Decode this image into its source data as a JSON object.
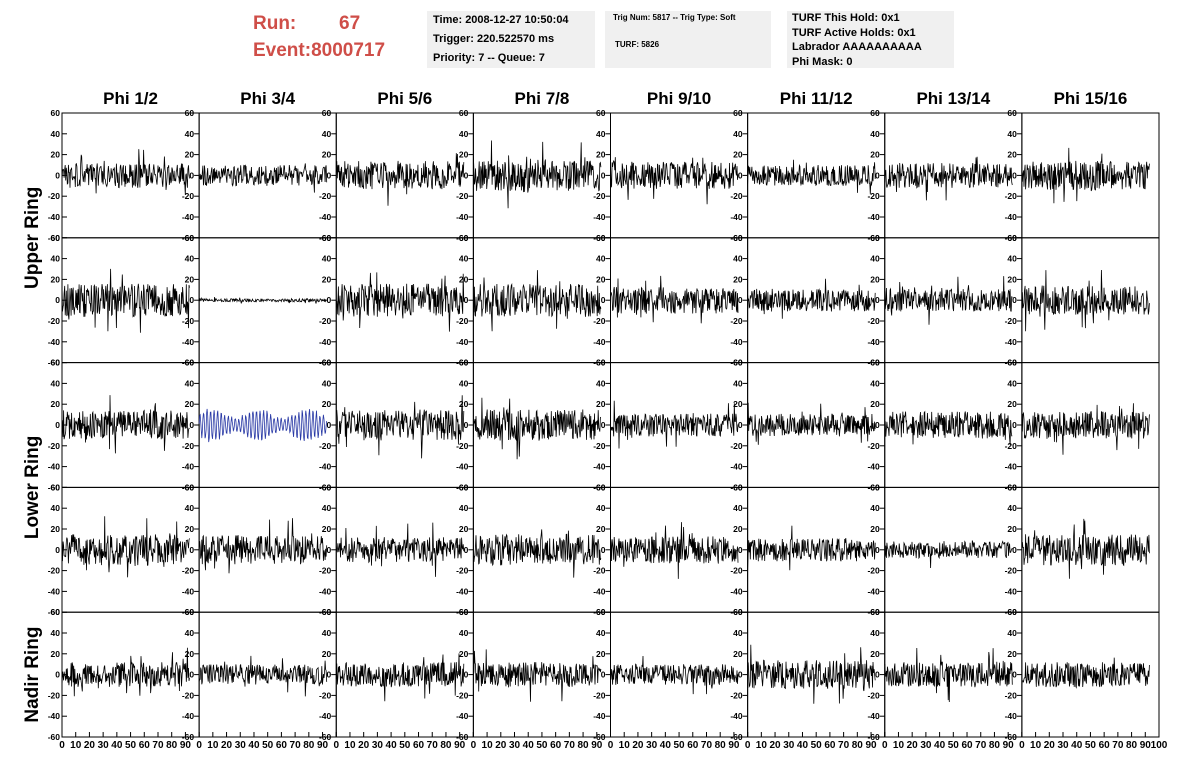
{
  "header": {
    "run_label": "Run:",
    "run_value": "67",
    "event_label": "Event:",
    "event_value": "8000717",
    "accent_color": "#cf4e48"
  },
  "info_time": {
    "line1": "Time: 2008-12-27 10:50:04",
    "line2": "Trigger: 220.522570 ms",
    "line3": "Priority: 7 -- Queue: 7"
  },
  "info_trig": {
    "line1": "Trig Num: 5817 -- Trig Type: Soft",
    "line2": "TURF: 5826"
  },
  "info_turf": {
    "line1": "TURF This Hold: 0x1",
    "line2": "TURF Active Holds: 0x1",
    "line3": "Labrador AAAAAAAAAA",
    "line4": "Phi Mask: 0"
  },
  "chart_data": {
    "type": "line",
    "columns": [
      "Phi 1/2",
      "Phi 3/4",
      "Phi 5/6",
      "Phi 7/8",
      "Phi 9/10",
      "Phi 11/12",
      "Phi 13/14",
      "Phi 15/16"
    ],
    "ring_labels": [
      {
        "label": "Upper Ring",
        "rows": [
          0,
          1
        ]
      },
      {
        "label": "Lower Ring",
        "rows": [
          2,
          3
        ]
      },
      {
        "label": "Nadir Ring",
        "rows": [
          4
        ]
      }
    ],
    "ylim": [
      -60,
      60
    ],
    "yticks": [
      "60",
      "40",
      "20",
      "0",
      "-20",
      "-40",
      "-60"
    ],
    "xlim": [
      0,
      100
    ],
    "xticks": [
      "0",
      "10",
      "20",
      "30",
      "40",
      "50",
      "60",
      "70",
      "80",
      "90",
      "100"
    ],
    "trace_color": "#000000",
    "highlight_color": "#2a3aa6",
    "highlight": {
      "row": 2,
      "col": 1
    },
    "amplitude_scale": [
      [
        12,
        10,
        14,
        16,
        13,
        10,
        12,
        14
      ],
      [
        16,
        1.5,
        16,
        16,
        13,
        11,
        11,
        14
      ],
      [
        14,
        15,
        15,
        15,
        11,
        11,
        13,
        13
      ],
      [
        15,
        14,
        12,
        15,
        13,
        11,
        8,
        15
      ],
      [
        12,
        10,
        12,
        12,
        10,
        14,
        12,
        12
      ]
    ]
  }
}
